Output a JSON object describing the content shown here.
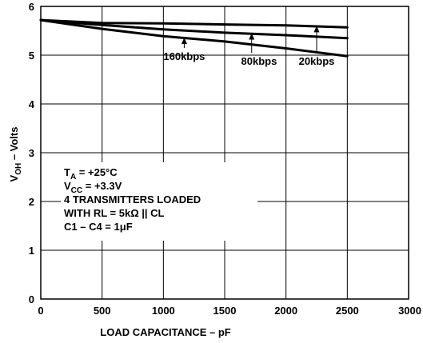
{
  "chart_data": {
    "type": "line",
    "xlabel": "LOAD CAPACITANCE – pF",
    "ylabel": {
      "main": "V",
      "sub": "OH",
      "rest": " – Volts"
    },
    "xlim": [
      0,
      3000
    ],
    "ylim": [
      0,
      6
    ],
    "xticks": [
      0,
      500,
      1000,
      1500,
      2000,
      2500,
      3000
    ],
    "yticks": [
      0,
      1,
      2,
      3,
      4,
      5,
      6
    ],
    "grid": true,
    "series": [
      {
        "name": "20kbps",
        "x": [
          0,
          500,
          1000,
          1500,
          2000,
          2500
        ],
        "y": [
          5.72,
          5.66,
          5.65,
          5.63,
          5.61,
          5.57
        ],
        "label_text": "20kbps",
        "label_xy": [
          2250,
          4.8
        ],
        "arrow_to": [
          2250,
          5.6
        ]
      },
      {
        "name": "80kbps",
        "x": [
          0,
          500,
          1000,
          1500,
          2000,
          2500
        ],
        "y": [
          5.72,
          5.62,
          5.53,
          5.46,
          5.41,
          5.35
        ],
        "label_text": "80kbps",
        "label_xy": [
          1780,
          4.8
        ],
        "arrow_to": [
          1720,
          5.45
        ]
      },
      {
        "name": "160kbps",
        "x": [
          0,
          500,
          1000,
          1500,
          2000,
          2500
        ],
        "y": [
          5.72,
          5.54,
          5.39,
          5.28,
          5.14,
          4.98
        ],
        "label_text": "160kbps",
        "label_xy": [
          1170,
          4.9
        ],
        "arrow_to": [
          1170,
          5.36
        ]
      }
    ],
    "annotations": [
      {
        "parts": [
          {
            "t": "T"
          },
          {
            "t": "A",
            "sub": true
          },
          {
            "t": " = +25°C"
          }
        ]
      },
      {
        "parts": [
          {
            "t": "V"
          },
          {
            "t": "CC",
            "sub": true
          },
          {
            "t": " = +3.3V"
          }
        ]
      },
      {
        "parts": [
          {
            "t": "4 TRANSMITTERS LOADED"
          }
        ]
      },
      {
        "parts": [
          {
            "t": "WITH RL = 5kΩ || CL"
          }
        ]
      },
      {
        "parts": [
          {
            "t": "C1 – C4 = 1μF"
          }
        ]
      }
    ]
  }
}
